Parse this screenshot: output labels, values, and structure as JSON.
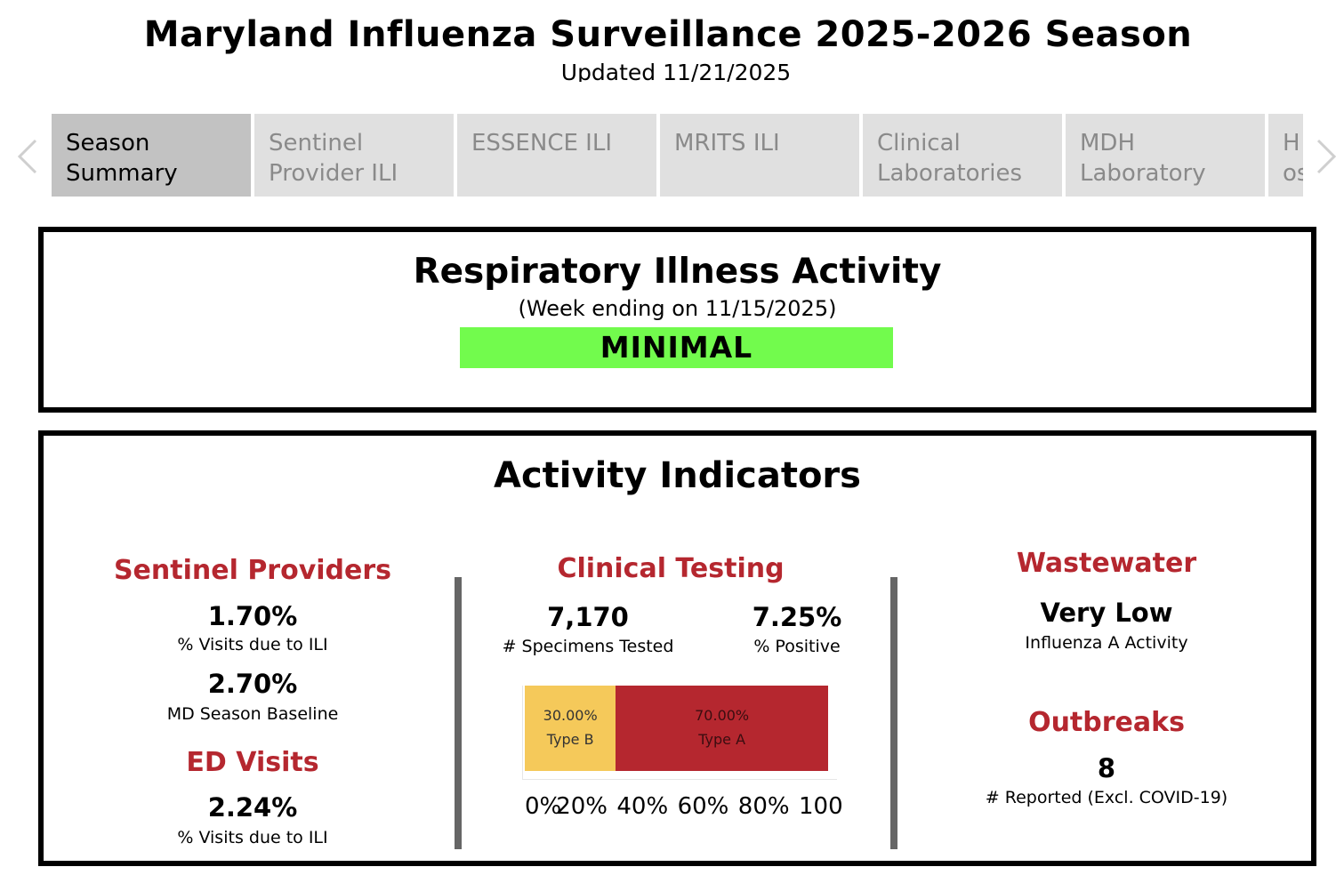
{
  "header": {
    "title": "Maryland Influenza Surveillance 2025-2026 Season",
    "updated": "Updated 11/21/2025"
  },
  "icons": {
    "left_arrow": "chevron-left-icon",
    "right_arrow": "chevron-right-icon"
  },
  "tabs": [
    {
      "label": "Season Summary",
      "active": true
    },
    {
      "label": "Sentinel Provider ILI",
      "active": false
    },
    {
      "label": "ESSENCE ILI",
      "active": false
    },
    {
      "label": "MRITS ILI",
      "active": false
    },
    {
      "label": "Clinical Laboratories",
      "active": false
    },
    {
      "label": "MDH Laboratory",
      "active": false
    },
    {
      "label": "Hospitalizations",
      "active": false
    }
  ],
  "respiratory_activity": {
    "title": "Respiratory Illness Activity",
    "week": "(Week ending on 11/15/2025)",
    "level": "MINIMAL",
    "level_color": "#72fb4d"
  },
  "activity_indicators": {
    "title": "Activity Indicators",
    "sentinel": {
      "heading": "Sentinel Providers",
      "value": "1.70%",
      "label": "% Visits due to ILI",
      "baseline_value": "2.70%",
      "baseline_label": "MD Season Baseline"
    },
    "ed": {
      "heading": "ED Visits",
      "value": "2.24%",
      "label": "% Visits due to ILI"
    },
    "clinical": {
      "heading": "Clinical Testing",
      "specimens_value": "7,170",
      "specimens_label": "# Specimens Tested",
      "positive_value": "7.25%",
      "positive_label": "% Positive"
    },
    "wastewater": {
      "heading": "Wastewater",
      "value": "Very Low",
      "label": "Influenza A Activity"
    },
    "outbreaks": {
      "heading": "Outbreaks",
      "value": "8",
      "label": "# Reported (Excl. COVID-19)"
    },
    "accent_color": "#b5272f"
  },
  "chart_data": {
    "type": "bar",
    "orientation": "horizontal-stacked",
    "series": [
      {
        "name": "Type B",
        "values": [
          30.0
        ],
        "label": "30.00%",
        "color": "#f5c95a"
      },
      {
        "name": "Type A",
        "values": [
          70.0
        ],
        "label": "70.00%",
        "color": "#b5272f"
      }
    ],
    "xlim": [
      0,
      100
    ],
    "xticks": [
      "0%",
      "20%",
      "40%",
      "60%",
      "80%",
      "100"
    ]
  }
}
